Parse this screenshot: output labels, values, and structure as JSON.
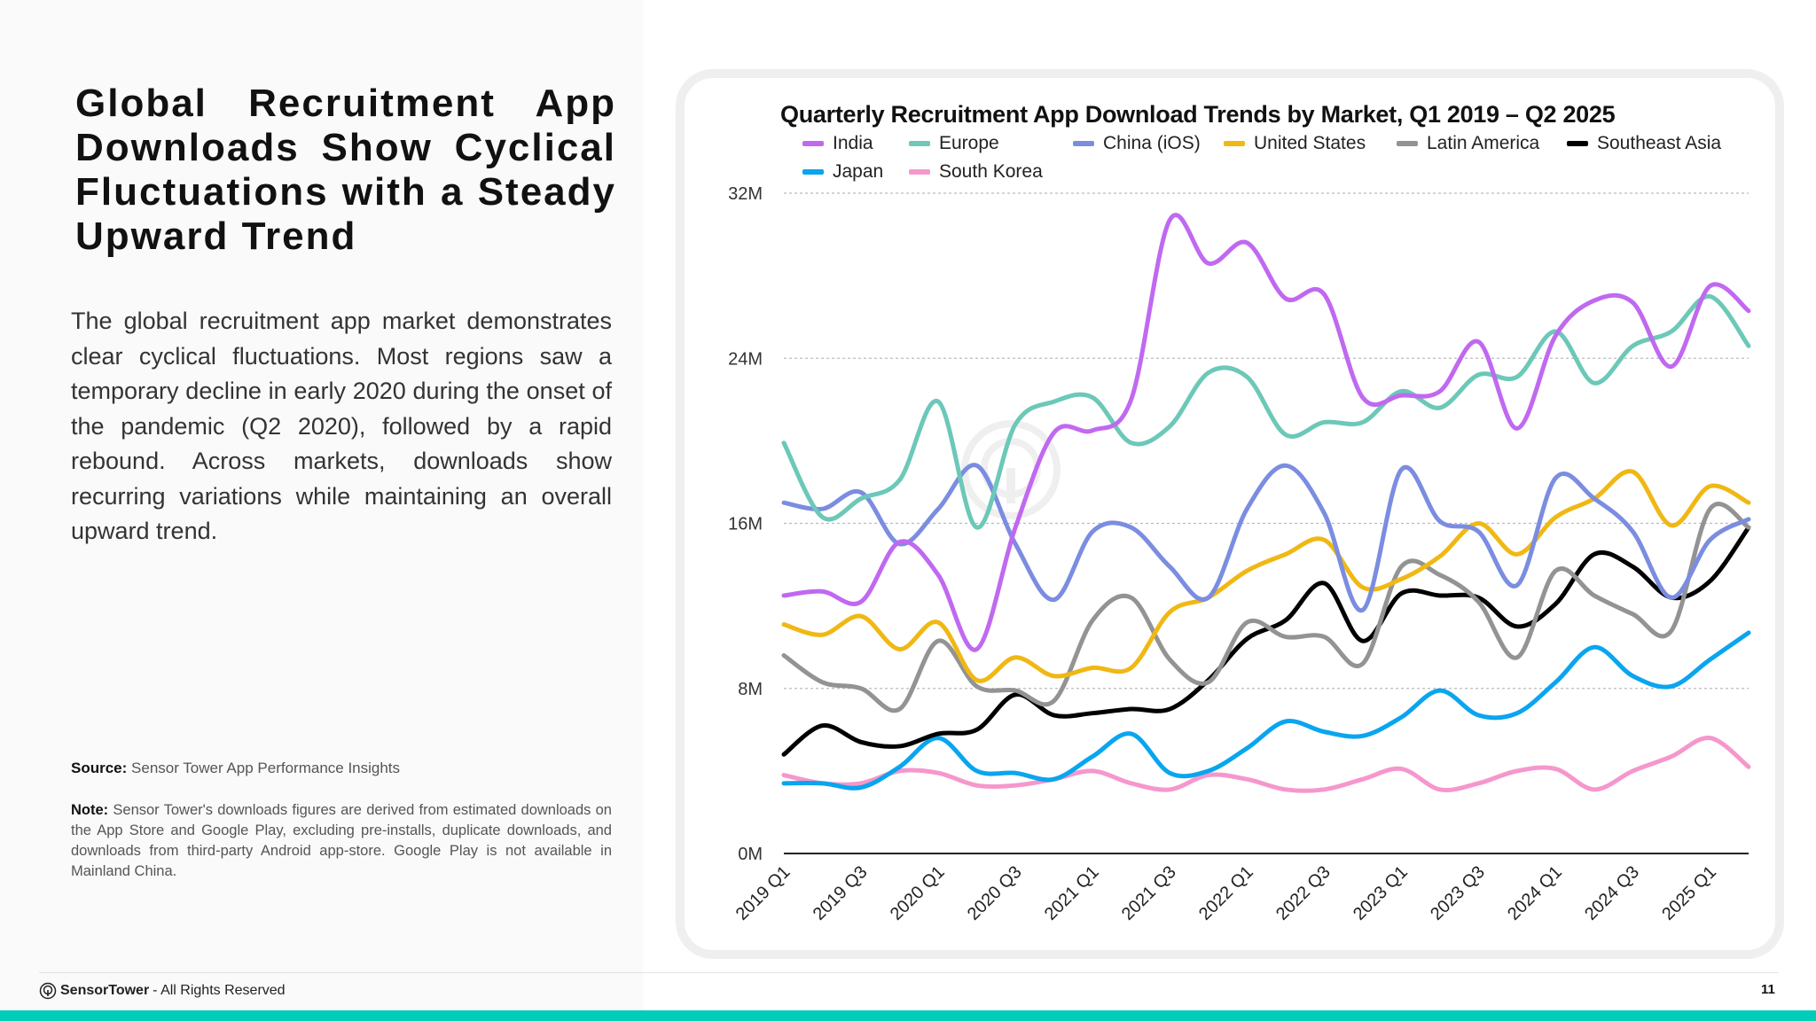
{
  "left": {
    "title": "Global Recruitment App Downloads Show Cyclical Fluctuations with a Steady Upward Trend",
    "body": "The global recruitment app market demonstrates clear cyclical fluctuations. Most regions saw a temporary decline in early 2020 during the onset of the pandemic (Q2 2020), followed by a rapid rebound. Across markets, downloads show recurring variations while maintaining an overall upward trend.",
    "source_label": "Source:",
    "source_text": " Sensor Tower App Performance Insights",
    "note_label": "Note:",
    "note_text": " Sensor Tower's downloads figures are derived from estimated downloads on the App Store and Google Play, excluding pre-installs, duplicate downloads, and downloads from third-party Android app-store. Google Play is not available in Mainland China."
  },
  "footer": {
    "brand": "SensorTower",
    "rights": " - All Rights Reserved",
    "page": "11",
    "accent": "#00cdb9"
  },
  "watermark": "SensorTower",
  "chart_data": {
    "type": "line",
    "title": "Quarterly Recruitment App Download Trends by Market, Q1 2019 – Q2 2025",
    "xlabel": "",
    "ylabel": "",
    "ylim": [
      0,
      32
    ],
    "yticks": [
      "0M",
      "8M",
      "16M",
      "24M",
      "32M"
    ],
    "ytick_values": [
      0,
      8,
      16,
      24,
      32
    ],
    "grid": "horizontal dotted",
    "legend": "top",
    "x": [
      "2019 Q1",
      "2019 Q2",
      "2019 Q3",
      "2019 Q4",
      "2020 Q1",
      "2020 Q2",
      "2020 Q3",
      "2020 Q4",
      "2021 Q1",
      "2021 Q2",
      "2021 Q3",
      "2021 Q4",
      "2022 Q1",
      "2022 Q2",
      "2022 Q3",
      "2022 Q4",
      "2023 Q1",
      "2023 Q2",
      "2023 Q3",
      "2023 Q4",
      "2024 Q1",
      "2024 Q2",
      "2024 Q3",
      "2024 Q4",
      "2025 Q1",
      "2025 Q2"
    ],
    "xtick_labels": [
      "2019 Q1",
      "2019 Q3",
      "2020 Q1",
      "2020 Q3",
      "2021 Q1",
      "2021 Q3",
      "2022 Q1",
      "2022 Q3",
      "2023 Q1",
      "2023 Q3",
      "2024 Q1",
      "2024 Q3",
      "2025 Q1"
    ],
    "series": [
      {
        "name": "India",
        "color": "#c069f0",
        "values": [
          12.5,
          12.7,
          12.2,
          15.1,
          13.5,
          9.9,
          15.8,
          20.4,
          20.5,
          22.0,
          30.7,
          28.6,
          29.6,
          26.9,
          27.1,
          22.1,
          22.2,
          22.4,
          24.8,
          20.6,
          25.1,
          26.8,
          26.7,
          23.6,
          27.5,
          26.3
        ]
      },
      {
        "name": "Europe",
        "color": "#6cc8b8",
        "values": [
          19.9,
          16.3,
          17.2,
          18.1,
          21.9,
          15.8,
          20.8,
          21.9,
          22.1,
          19.9,
          20.7,
          23.3,
          23.1,
          20.3,
          20.9,
          20.9,
          22.4,
          21.6,
          23.2,
          23.1,
          25.3,
          22.8,
          24.6,
          25.3,
          27.0,
          24.6
        ]
      },
      {
        "name": "China (iOS)",
        "color": "#7b8de0",
        "values": [
          17.0,
          16.7,
          17.5,
          15.0,
          16.7,
          18.8,
          15.0,
          12.3,
          15.6,
          15.8,
          13.9,
          12.4,
          16.7,
          18.8,
          16.5,
          11.8,
          18.6,
          16.1,
          15.6,
          13.0,
          18.2,
          17.2,
          15.6,
          12.4,
          15.2,
          16.2
        ]
      },
      {
        "name": "United States",
        "color": "#f0b814",
        "values": [
          11.1,
          10.6,
          11.5,
          9.9,
          11.2,
          8.4,
          9.5,
          8.6,
          9.0,
          9.0,
          11.7,
          12.4,
          13.7,
          14.5,
          15.2,
          12.9,
          13.3,
          14.4,
          16.0,
          14.5,
          16.3,
          17.2,
          18.5,
          15.9,
          17.8,
          17.0
        ]
      },
      {
        "name": "Latin America",
        "color": "#939393",
        "values": [
          9.6,
          8.3,
          8.0,
          7.0,
          10.3,
          8.1,
          7.9,
          7.4,
          11.3,
          12.4,
          9.4,
          8.3,
          11.2,
          10.5,
          10.5,
          9.2,
          13.9,
          13.5,
          12.2,
          9.5,
          13.7,
          12.5,
          11.6,
          10.8,
          16.7,
          15.8
        ]
      },
      {
        "name": "Southeast Asia",
        "color": "#000000",
        "values": [
          4.8,
          6.2,
          5.4,
          5.2,
          5.8,
          6.0,
          7.7,
          6.7,
          6.8,
          7.0,
          7.0,
          8.4,
          10.4,
          11.3,
          13.1,
          10.3,
          12.6,
          12.5,
          12.4,
          11.0,
          12.1,
          14.5,
          13.9,
          12.4,
          13.2,
          15.8
        ]
      },
      {
        "name": "Japan",
        "color": "#0aa5ef",
        "values": [
          3.4,
          3.4,
          3.2,
          4.2,
          5.6,
          4.0,
          3.9,
          3.6,
          4.7,
          5.8,
          3.9,
          4.0,
          5.1,
          6.4,
          5.9,
          5.7,
          6.6,
          7.9,
          6.7,
          6.8,
          8.3,
          10.0,
          8.6,
          8.1,
          9.4,
          10.7
        ]
      },
      {
        "name": "South Korea",
        "color": "#f597cd",
        "values": [
          3.8,
          3.4,
          3.4,
          4.0,
          3.9,
          3.3,
          3.3,
          3.6,
          4.0,
          3.4,
          3.1,
          3.8,
          3.6,
          3.1,
          3.1,
          3.6,
          4.1,
          3.1,
          3.4,
          4.0,
          4.1,
          3.1,
          4.0,
          4.7,
          5.6,
          4.2
        ]
      }
    ]
  }
}
